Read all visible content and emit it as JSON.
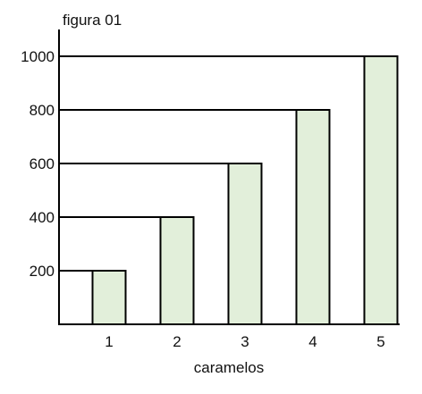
{
  "chart_data": {
    "type": "bar",
    "title": "figura 01",
    "xlabel": "caramelos",
    "ylabel": "",
    "categories": [
      "1",
      "2",
      "3",
      "4",
      "5"
    ],
    "values": [
      200,
      400,
      600,
      800,
      1000
    ],
    "y_ticks": [
      "200",
      "400",
      "600",
      "800",
      "1000"
    ],
    "ylim": [
      0,
      1100
    ],
    "grid": false,
    "colors": {
      "bar_fill": "#e2efda",
      "stroke": "#000000"
    }
  }
}
